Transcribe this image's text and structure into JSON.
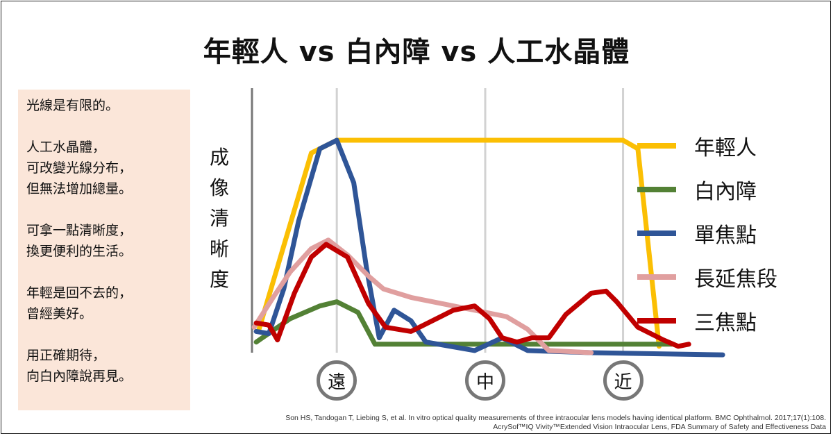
{
  "side_panel": {
    "paragraphs": [
      "光線是有限的。",
      "人工水晶體，\n可改變光線分布，\n但無法增加總量。",
      "可拿一點清晰度，\n換更便利的生活。",
      "年輕是回不去的，\n曾經美好。",
      "用正確期待，\n向白內障說再見。"
    ]
  },
  "source": {
    "line1": "Son HS, Tandogan T, Liebing S, et al. In vitro optical quality measurements of three intraocular lens models having identical platform. BMC Ophthalmol. 2017;17(1):108.",
    "line2": "AcrySof™IQ Vivity™Extended Vision Intraocular Lens, FDA Summary of Safety and Effectiveness Data"
  },
  "chart_data": {
    "type": "line",
    "title": "年輕人 vs 白內障 vs 人工水晶體",
    "ylabel": "成像清晰度",
    "xlabel": "",
    "xlim": [
      -1,
      1.2
    ],
    "ylim": [
      0,
      100
    ],
    "grid": true,
    "legend_position": "right",
    "x_ticks": [
      {
        "label": "遠",
        "x": -0.6
      },
      {
        "label": "中",
        "x": 0.1
      },
      {
        "label": "近",
        "x": 0.75
      }
    ],
    "series": [
      {
        "name": "年輕人",
        "color": "#fbbf04",
        "points": [
          [
            -0.97,
            10
          ],
          [
            -0.72,
            94
          ],
          [
            -0.6,
            100
          ],
          [
            0.75,
            100
          ],
          [
            0.82,
            96
          ],
          [
            0.92,
            3
          ]
        ]
      },
      {
        "name": "白內障",
        "color": "#538135",
        "points": [
          [
            -0.98,
            5
          ],
          [
            -0.82,
            16
          ],
          [
            -0.68,
            22
          ],
          [
            -0.6,
            24
          ],
          [
            -0.5,
            19
          ],
          [
            -0.42,
            4
          ],
          [
            0.1,
            4
          ],
          [
            0.5,
            4
          ],
          [
            0.98,
            4
          ]
        ]
      },
      {
        "name": "單焦點",
        "color": "#2f5597",
        "points": [
          [
            -0.98,
            10
          ],
          [
            -0.92,
            9
          ],
          [
            -0.85,
            30
          ],
          [
            -0.78,
            62
          ],
          [
            -0.68,
            96
          ],
          [
            -0.6,
            100
          ],
          [
            -0.52,
            80
          ],
          [
            -0.46,
            40
          ],
          [
            -0.4,
            7
          ],
          [
            -0.33,
            20
          ],
          [
            -0.25,
            15
          ],
          [
            -0.18,
            5
          ],
          [
            0.05,
            1
          ],
          [
            0.18,
            7
          ],
          [
            0.3,
            1
          ],
          [
            0.6,
            0
          ],
          [
            1.22,
            -1
          ]
        ]
      },
      {
        "name": "長延焦段",
        "color": "#e09f9f",
        "points": [
          [
            -0.99,
            12
          ],
          [
            -0.9,
            26
          ],
          [
            -0.82,
            38
          ],
          [
            -0.72,
            49
          ],
          [
            -0.64,
            53
          ],
          [
            -0.55,
            46
          ],
          [
            -0.45,
            36
          ],
          [
            -0.38,
            30
          ],
          [
            -0.25,
            26
          ],
          [
            -0.1,
            23
          ],
          [
            0.05,
            20
          ],
          [
            0.2,
            17
          ],
          [
            0.3,
            11
          ],
          [
            0.35,
            6
          ],
          [
            0.4,
            1
          ],
          [
            0.6,
            0
          ]
        ]
      },
      {
        "name": "三焦點",
        "color": "#c00000",
        "points": [
          [
            -0.98,
            14
          ],
          [
            -0.92,
            13
          ],
          [
            -0.88,
            6
          ],
          [
            -0.8,
            28
          ],
          [
            -0.72,
            45
          ],
          [
            -0.65,
            51
          ],
          [
            -0.55,
            45
          ],
          [
            -0.45,
            23
          ],
          [
            -0.37,
            12
          ],
          [
            -0.25,
            10
          ],
          [
            -0.15,
            15
          ],
          [
            -0.05,
            20
          ],
          [
            0.05,
            22
          ],
          [
            0.12,
            16
          ],
          [
            0.18,
            7
          ],
          [
            0.25,
            5
          ],
          [
            0.32,
            7
          ],
          [
            0.4,
            7
          ],
          [
            0.48,
            18
          ],
          [
            0.6,
            28
          ],
          [
            0.67,
            29
          ],
          [
            0.72,
            24
          ],
          [
            0.82,
            12
          ],
          [
            0.94,
            6
          ],
          [
            1.01,
            3
          ],
          [
            1.06,
            4
          ]
        ]
      }
    ]
  }
}
